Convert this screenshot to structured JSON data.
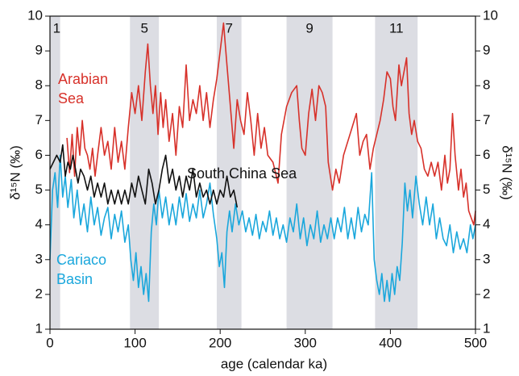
{
  "chart_data": {
    "type": "line",
    "xlabel": "age (calendar ka)",
    "ylabel": "δ¹⁵N (‰)",
    "y2label": "δ¹⁵N (‰)",
    "xlim": [
      0,
      500
    ],
    "xticks": [
      0,
      100,
      200,
      300,
      400,
      500
    ],
    "ylim": [
      1,
      10
    ],
    "yticks": [
      1,
      2,
      3,
      4,
      5,
      6,
      7,
      8,
      9,
      10
    ],
    "y2lim": [
      1,
      10
    ],
    "y2ticks": [
      1,
      2,
      3,
      4,
      5,
      6,
      7,
      8,
      9,
      10
    ],
    "band_color": "#dcdde3",
    "bands": [
      {
        "label": "1",
        "x": [
          0,
          12
        ]
      },
      {
        "label": "5",
        "x": [
          94,
          128
        ]
      },
      {
        "label": "7",
        "x": [
          196,
          225
        ]
      },
      {
        "label": "9",
        "x": [
          278,
          332
        ]
      },
      {
        "label": "11",
        "x": [
          382,
          432
        ]
      }
    ],
    "series": [
      {
        "name": "Arabian Sea",
        "color": "#d7312a",
        "x": [
          20,
          23,
          26,
          29,
          32,
          35,
          38,
          41,
          44,
          47,
          50,
          53,
          56,
          60,
          64,
          68,
          72,
          76,
          80,
          84,
          88,
          92,
          96,
          100,
          104,
          108,
          112,
          115,
          118,
          121,
          124,
          127,
          130,
          133,
          136,
          140,
          144,
          148,
          152,
          156,
          160,
          164,
          168,
          172,
          176,
          180,
          184,
          188,
          192,
          196,
          200,
          204,
          208,
          212,
          216,
          220,
          224,
          228,
          232,
          236,
          240,
          244,
          248,
          252,
          256,
          262,
          268,
          272,
          278,
          284,
          290,
          293,
          296,
          300,
          304,
          308,
          312,
          316,
          320,
          324,
          327,
          332,
          336,
          340,
          345,
          350,
          355,
          360,
          364,
          368,
          372,
          376,
          380,
          384,
          388,
          392,
          396,
          400,
          403,
          406,
          410,
          413,
          416,
          419,
          422,
          425,
          428,
          432,
          436,
          440,
          444,
          448,
          452,
          456,
          460,
          464,
          467,
          470,
          473,
          476,
          480,
          483,
          486,
          489,
          492,
          495,
          498,
          500
        ],
        "values": [
          6.5,
          5.5,
          6.6,
          5.4,
          6.8,
          6.0,
          7.0,
          6.2,
          6.0,
          5.6,
          6.2,
          5.4,
          6.0,
          6.8,
          6.0,
          6.4,
          5.6,
          6.8,
          5.8,
          6.4,
          5.6,
          6.8,
          7.8,
          7.2,
          8.0,
          7.0,
          8.4,
          9.2,
          8.0,
          7.2,
          8.0,
          6.6,
          7.8,
          6.8,
          7.6,
          6.4,
          7.2,
          6.0,
          7.4,
          6.8,
          8.6,
          7.0,
          7.6,
          7.2,
          8.0,
          7.0,
          7.8,
          6.8,
          7.6,
          8.2,
          9.0,
          9.8,
          8.6,
          7.4,
          6.2,
          7.6,
          7.0,
          6.6,
          7.8,
          7.0,
          6.0,
          7.2,
          6.2,
          6.8,
          6.0,
          5.8,
          5.2,
          6.6,
          7.4,
          7.8,
          8.0,
          7.0,
          6.2,
          6.0,
          7.2,
          7.9,
          7.0,
          8.0,
          7.8,
          7.4,
          5.8,
          5.0,
          5.6,
          5.2,
          6.0,
          6.4,
          6.8,
          7.2,
          6.0,
          6.4,
          6.6,
          5.6,
          6.2,
          6.6,
          7.0,
          7.6,
          8.4,
          8.2,
          7.4,
          7.0,
          8.6,
          8.0,
          8.4,
          8.8,
          7.2,
          6.6,
          7.0,
          6.4,
          6.2,
          5.6,
          5.4,
          5.8,
          5.4,
          5.8,
          5.0,
          6.0,
          5.2,
          5.6,
          7.2,
          6.0,
          5.0,
          5.6,
          4.8,
          5.2,
          4.4,
          4.2,
          4.0,
          4.4
        ]
      },
      {
        "name": "Cariaco Basin",
        "color": "#1aa7dc",
        "x": [
          0,
          3,
          6,
          9,
          12,
          15,
          18,
          21,
          25,
          28,
          32,
          36,
          40,
          44,
          48,
          52,
          56,
          60,
          64,
          68,
          72,
          76,
          80,
          84,
          88,
          92,
          95,
          98,
          101,
          104,
          107,
          110,
          113,
          116,
          119,
          122,
          125,
          128,
          132,
          136,
          140,
          144,
          148,
          152,
          156,
          160,
          164,
          168,
          172,
          176,
          180,
          184,
          188,
          192,
          196,
          199,
          202,
          205,
          208,
          211,
          214,
          218,
          222,
          226,
          230,
          234,
          238,
          242,
          246,
          250,
          254,
          258,
          262,
          266,
          270,
          274,
          278,
          282,
          286,
          290,
          294,
          298,
          302,
          306,
          310,
          314,
          318,
          322,
          326,
          330,
          334,
          338,
          342,
          346,
          350,
          354,
          358,
          362,
          366,
          370,
          374,
          378,
          381,
          384,
          387,
          390,
          393,
          396,
          399,
          402,
          405,
          408,
          411,
          414,
          417,
          420,
          423,
          426,
          430,
          434,
          438,
          442,
          446,
          450,
          454,
          458,
          462,
          466,
          470,
          474,
          478,
          482,
          486,
          490,
          494,
          497,
          500
        ],
        "values": [
          3.0,
          5.0,
          5.5,
          4.5,
          6.0,
          4.8,
          5.4,
          4.5,
          5.3,
          4.2,
          5.0,
          4.0,
          4.6,
          3.8,
          4.8,
          4.0,
          4.5,
          3.7,
          4.2,
          4.5,
          3.6,
          4.3,
          3.8,
          4.4,
          3.5,
          4.0,
          3.0,
          2.4,
          3.2,
          2.2,
          2.8,
          2.0,
          2.6,
          1.8,
          3.8,
          4.6,
          4.0,
          5.0,
          4.2,
          4.8,
          4.0,
          4.6,
          4.0,
          4.8,
          4.2,
          4.9,
          4.1,
          4.6,
          4.2,
          5.0,
          4.2,
          4.6,
          5.2,
          4.3,
          3.6,
          2.8,
          3.2,
          2.2,
          3.8,
          4.4,
          3.8,
          4.6,
          4.0,
          4.4,
          3.8,
          4.2,
          3.7,
          4.3,
          3.6,
          4.1,
          3.8,
          4.4,
          3.7,
          4.2,
          3.6,
          4.0,
          3.5,
          4.2,
          3.8,
          4.6,
          3.6,
          4.2,
          3.4,
          4.0,
          3.6,
          4.4,
          3.5,
          4.0,
          3.6,
          4.2,
          3.6,
          4.2,
          3.8,
          4.5,
          3.6,
          4.2,
          3.6,
          4.5,
          3.8,
          4.3,
          4.0,
          5.5,
          3.0,
          2.4,
          2.0,
          2.6,
          1.8,
          2.4,
          1.8,
          2.6,
          2.0,
          2.8,
          2.4,
          3.5,
          5.2,
          4.4,
          5.0,
          4.2,
          5.4,
          4.6,
          4.0,
          4.8,
          4.0,
          4.6,
          3.6,
          4.2,
          3.6,
          3.4,
          4.0,
          3.2,
          3.8,
          3.3,
          3.6,
          3.2,
          4.0,
          3.6,
          4.0
        ]
      },
      {
        "name": "South China Sea",
        "color": "#111111",
        "x": [
          0,
          4,
          8,
          12,
          15,
          18,
          21,
          24,
          27,
          30,
          33,
          36,
          40,
          44,
          48,
          52,
          56,
          60,
          64,
          68,
          72,
          76,
          80,
          84,
          88,
          92,
          96,
          100,
          104,
          108,
          112,
          116,
          120,
          124,
          128,
          132,
          136,
          140,
          144,
          148,
          152,
          156,
          160,
          164,
          168,
          172,
          176,
          180,
          184,
          188,
          192,
          196,
          200,
          204,
          208,
          212,
          216,
          220
        ],
        "values": [
          5.6,
          5.8,
          6.0,
          5.8,
          6.3,
          5.4,
          5.8,
          5.6,
          6.0,
          5.6,
          5.2,
          5.6,
          5.4,
          5.0,
          5.4,
          4.8,
          5.2,
          4.8,
          5.2,
          4.6,
          5.0,
          4.6,
          5.0,
          4.6,
          5.0,
          4.6,
          5.2,
          4.8,
          5.4,
          5.0,
          4.6,
          5.6,
          5.2,
          4.6,
          5.0,
          5.6,
          6.0,
          5.2,
          5.6,
          5.0,
          5.4,
          4.8,
          5.4,
          5.0,
          5.6,
          4.8,
          5.2,
          4.8,
          5.0,
          4.6,
          5.0,
          4.6,
          5.0,
          4.8,
          5.4,
          4.8,
          5.0,
          4.5
        ]
      }
    ]
  }
}
